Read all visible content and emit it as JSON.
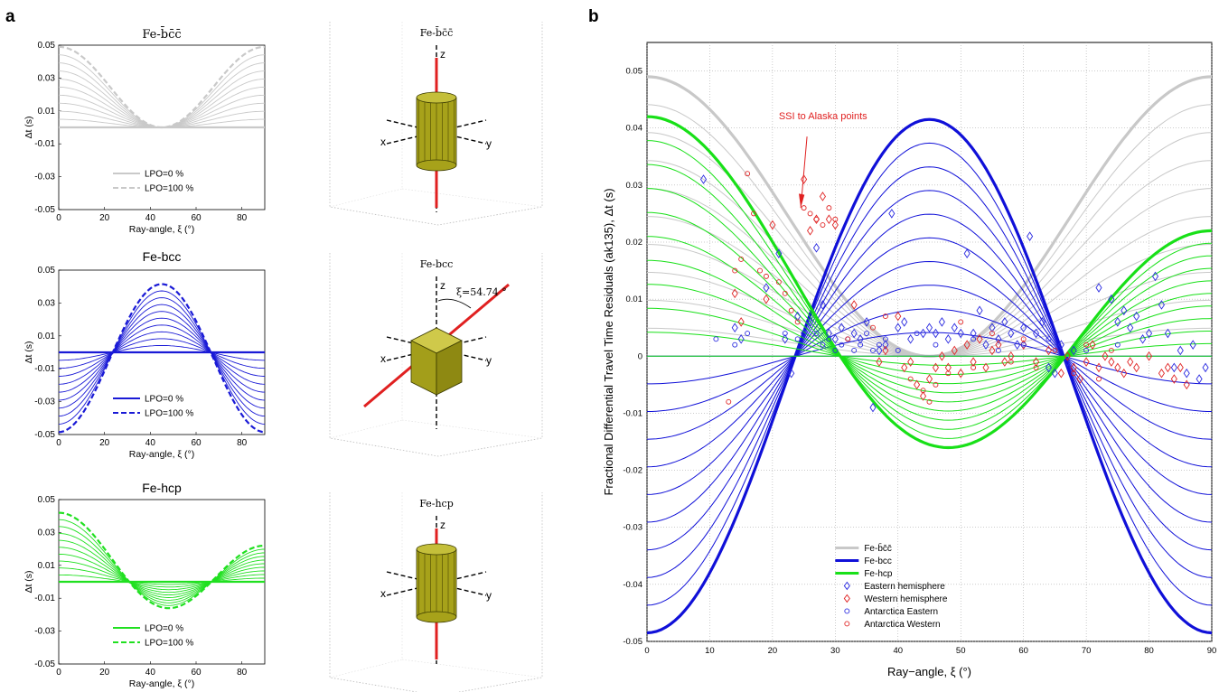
{
  "figure": {
    "panel_a_letter": "a",
    "panel_b_letter": "b"
  },
  "chart_data": [
    {
      "id": "a1",
      "type": "line",
      "title": "Fe-b̄c̄c̄",
      "xlabel": "Ray-angle, ξ (°)",
      "ylabel": "Δt (s)",
      "xlim": [
        0,
        90
      ],
      "ylim": [
        -0.05,
        0.05
      ],
      "xticks": [
        "0",
        "20",
        "40",
        "60",
        "80"
      ],
      "yticks": [
        "0.05",
        "0.03",
        "0.01",
        "-0.01",
        "-0.03",
        "-0.05"
      ],
      "color": "#c9c9c9",
      "model": {
        "shape": "cos2",
        "amplitude_min": 0.0,
        "amplitude_max": 0.049,
        "n_curves": 11,
        "min_at_deg": 45
      },
      "legend": [
        "LPO=0 %",
        "LPO=100 %"
      ]
    },
    {
      "id": "a2",
      "type": "line",
      "title": "Fe-bcc",
      "xlabel": "Ray-angle, ξ (°)",
      "ylabel": "Δt (s)",
      "xlim": [
        0,
        90
      ],
      "ylim": [
        -0.05,
        0.05
      ],
      "xticks": [
        "0",
        "20",
        "40",
        "60",
        "80"
      ],
      "yticks": [
        "0.05",
        "0.03",
        "0.01",
        "-0.01",
        "-0.03",
        "-0.05"
      ],
      "color": "#1a1ad6",
      "model": {
        "shape": "cubic",
        "value_at_0": -0.0485,
        "value_at_45": 0.0415,
        "n_curves": 11
      },
      "legend": [
        "LPO=0 %",
        "LPO=100 %"
      ]
    },
    {
      "id": "a3",
      "type": "line",
      "title": "Fe-hcp",
      "xlabel": "Ray-angle, ξ (°)",
      "ylabel": "Δt (s)",
      "xlim": [
        0,
        90
      ],
      "ylim": [
        -0.05,
        0.05
      ],
      "xticks": [
        "0",
        "20",
        "40",
        "60",
        "80"
      ],
      "yticks": [
        "0.05",
        "0.03",
        "0.01",
        "-0.01",
        "-0.03",
        "-0.05"
      ],
      "color": "#20e020",
      "model": {
        "shape": "hexagonal",
        "value_at_0": 0.042,
        "value_at_48": -0.0155,
        "value_at_90": 0.022,
        "n_curves": 11
      },
      "legend": [
        "LPO=0 %",
        "LPO=100 %"
      ]
    },
    {
      "id": "b",
      "type": "scatter",
      "title": "",
      "xlabel": "Ray−angle, ξ (°)",
      "ylabel": "Fractional Differential Travel Time Residuals (ak135), Δt (s)",
      "xlim": [
        0,
        90
      ],
      "ylim": [
        -0.05,
        0.055
      ],
      "xticks": [
        "0",
        "10",
        "20",
        "30",
        "40",
        "50",
        "60",
        "70",
        "80",
        "90"
      ],
      "yticks": [
        "0.05",
        "0.04",
        "0.03",
        "0.02",
        "0.01",
        "0",
        "-0.01",
        "-0.02",
        "-0.03",
        "-0.04",
        "-0.05"
      ],
      "grid": true,
      "legend_position": "bottom-center",
      "annotation": "SSI to Alaska points",
      "series": [
        {
          "name": "Fe-b̄c̄c̄",
          "kind": "line",
          "color": "#c8c8c8",
          "model": "cos2",
          "amplitude_max": 0.049
        },
        {
          "name": "Fe-bcc",
          "kind": "line",
          "color": "#1010d8",
          "model": "cubic",
          "value_at_0": -0.0485,
          "value_at_45": 0.0415
        },
        {
          "name": "Fe-hcp",
          "kind": "line",
          "color": "#18e018",
          "model": "hexagonal",
          "value_at_0": 0.042,
          "value_at_48": -0.0155,
          "value_at_90": 0.022
        },
        {
          "name": "Eastern hemisphere",
          "kind": "diamond",
          "color": "#2a2ae0",
          "points": [
            [
              9,
              0.031
            ],
            [
              14,
              0.005
            ],
            [
              15,
              0.003
            ],
            [
              19,
              0.012
            ],
            [
              21,
              0.018
            ],
            [
              22,
              0.003
            ],
            [
              23,
              -0.003
            ],
            [
              24,
              0.007
            ],
            [
              25,
              0.004
            ],
            [
              26,
              0.006
            ],
            [
              27,
              0.019
            ],
            [
              28,
              0.009
            ],
            [
              29,
              0.004
            ],
            [
              30,
              0.003
            ],
            [
              31,
              0.005
            ],
            [
              33,
              0.004
            ],
            [
              34,
              0.003
            ],
            [
              35,
              0.006
            ],
            [
              36,
              -0.009
            ],
            [
              37,
              0.001
            ],
            [
              38,
              0.002
            ],
            [
              39,
              0.025
            ],
            [
              40,
              0.005
            ],
            [
              41,
              0.006
            ],
            [
              42,
              0.003
            ],
            [
              44,
              0.004
            ],
            [
              45,
              0.005
            ],
            [
              46,
              0.004
            ],
            [
              47,
              0.006
            ],
            [
              48,
              0.003
            ],
            [
              49,
              0.005
            ],
            [
              50,
              0.004
            ],
            [
              51,
              0.018
            ],
            [
              52,
              0.004
            ],
            [
              53,
              0.008
            ],
            [
              54,
              0.002
            ],
            [
              55,
              0.005
            ],
            [
              56,
              0.003
            ],
            [
              57,
              0.006
            ],
            [
              58,
              0.004
            ],
            [
              59,
              0.002
            ],
            [
              60,
              0.005
            ],
            [
              61,
              0.021
            ],
            [
              62,
              0.004
            ],
            [
              63,
              0.006
            ],
            [
              64,
              -0.002
            ],
            [
              65,
              -0.003
            ],
            [
              66,
              0.002
            ],
            [
              67,
              -0.001
            ],
            [
              68,
              0.001
            ],
            [
              72,
              0.012
            ],
            [
              74,
              0.01
            ],
            [
              75,
              0.006
            ],
            [
              76,
              0.008
            ],
            [
              77,
              0.005
            ],
            [
              78,
              0.007
            ],
            [
              79,
              0.003
            ],
            [
              80,
              0.004
            ],
            [
              81,
              0.014
            ],
            [
              82,
              0.009
            ],
            [
              83,
              0.004
            ],
            [
              84,
              -0.002
            ],
            [
              85,
              0.001
            ],
            [
              86,
              -0.003
            ],
            [
              87,
              0.002
            ],
            [
              88,
              -0.004
            ],
            [
              89,
              -0.002
            ]
          ]
        },
        {
          "name": "Western hemisphere",
          "kind": "diamond",
          "color": "#e02424",
          "points": [
            [
              14,
              0.011
            ],
            [
              15,
              0.006
            ],
            [
              19,
              0.01
            ],
            [
              20,
              0.023
            ],
            [
              25,
              0.031
            ],
            [
              26,
              0.022
            ],
            [
              27,
              0.024
            ],
            [
              28,
              0.028
            ],
            [
              29,
              0.024
            ],
            [
              30,
              0.023
            ],
            [
              33,
              0.009
            ],
            [
              37,
              -0.001
            ],
            [
              38,
              0.001
            ],
            [
              40,
              0.007
            ],
            [
              41,
              -0.002
            ],
            [
              42,
              -0.001
            ],
            [
              43,
              -0.005
            ],
            [
              44,
              -0.007
            ],
            [
              45,
              -0.004
            ],
            [
              46,
              -0.002
            ],
            [
              47,
              0.0
            ],
            [
              48,
              -0.002
            ],
            [
              49,
              0.001
            ],
            [
              50,
              -0.003
            ],
            [
              51,
              0.002
            ],
            [
              52,
              -0.001
            ],
            [
              53,
              0.003
            ],
            [
              54,
              -0.002
            ],
            [
              55,
              0.001
            ],
            [
              56,
              0.002
            ],
            [
              57,
              -0.001
            ],
            [
              58,
              0.0
            ],
            [
              60,
              0.002
            ],
            [
              62,
              -0.001
            ],
            [
              64,
              0.001
            ],
            [
              66,
              -0.003
            ],
            [
              67,
              0.0
            ],
            [
              68,
              -0.002
            ],
            [
              69,
              -0.004
            ],
            [
              70,
              -0.001
            ],
            [
              71,
              0.002
            ],
            [
              72,
              -0.002
            ],
            [
              73,
              0.0
            ],
            [
              74,
              -0.001
            ],
            [
              75,
              -0.002
            ],
            [
              76,
              -0.003
            ],
            [
              77,
              -0.001
            ],
            [
              78,
              -0.002
            ],
            [
              80,
              0.0
            ],
            [
              82,
              -0.003
            ],
            [
              83,
              -0.002
            ],
            [
              84,
              -0.004
            ],
            [
              85,
              -0.002
            ],
            [
              86,
              -0.005
            ]
          ]
        },
        {
          "name": "Antarctica Eastern",
          "kind": "circle",
          "color": "#2a2ae0",
          "points": [
            [
              11,
              0.003
            ],
            [
              14,
              0.002
            ],
            [
              16,
              0.004
            ],
            [
              22,
              0.004
            ],
            [
              24,
              0.003
            ],
            [
              27,
              0.004
            ],
            [
              28,
              0.002
            ],
            [
              29,
              0.003
            ],
            [
              30,
              0.001
            ],
            [
              31,
              0.002
            ],
            [
              32,
              0.003
            ],
            [
              33,
              0.001
            ],
            [
              34,
              0.002
            ],
            [
              35,
              0.004
            ],
            [
              36,
              0.001
            ],
            [
              37,
              0.002
            ],
            [
              38,
              0.003
            ],
            [
              40,
              0.001
            ],
            [
              43,
              0.004
            ],
            [
              46,
              0.002
            ],
            [
              52,
              0.003
            ],
            [
              56,
              0.001
            ],
            [
              60,
              0.002
            ],
            [
              64,
              0.003
            ],
            [
              70,
              0.001
            ],
            [
              75,
              0.002
            ]
          ]
        },
        {
          "name": "Antarctica Western",
          "kind": "circle",
          "color": "#e02424",
          "points": [
            [
              13,
              -0.008
            ],
            [
              14,
              0.015
            ],
            [
              15,
              0.017
            ],
            [
              16,
              0.032
            ],
            [
              17,
              0.025
            ],
            [
              18,
              0.015
            ],
            [
              19,
              0.014
            ],
            [
              21,
              0.013
            ],
            [
              22,
              0.011
            ],
            [
              23,
              0.008
            ],
            [
              24,
              0.006
            ],
            [
              25,
              0.026
            ],
            [
              26,
              0.025
            ],
            [
              27,
              0.024
            ],
            [
              28,
              0.023
            ],
            [
              29,
              0.026
            ],
            [
              30,
              0.024
            ],
            [
              32,
              0.003
            ],
            [
              36,
              0.005
            ],
            [
              38,
              0.007
            ],
            [
              42,
              -0.004
            ],
            [
              44,
              -0.006
            ],
            [
              45,
              -0.008
            ],
            [
              46,
              -0.005
            ],
            [
              48,
              -0.003
            ],
            [
              50,
              0.006
            ],
            [
              52,
              -0.002
            ],
            [
              55,
              0.004
            ],
            [
              58,
              -0.001
            ],
            [
              60,
              0.003
            ],
            [
              62,
              -0.002
            ],
            [
              65,
              0.001
            ],
            [
              68,
              -0.003
            ],
            [
              70,
              0.002
            ],
            [
              72,
              -0.004
            ],
            [
              74,
              0.001
            ]
          ]
        }
      ]
    }
  ],
  "diagrams": [
    {
      "title": "Fe-b̄c̄c̄",
      "axis_z": "z",
      "axis_x": "x",
      "axis_y": "y",
      "shape": "cylinder"
    },
    {
      "title": "Fe-bcc",
      "axis_z": "z",
      "axis_x": "x",
      "axis_y": "y",
      "shape": "cube",
      "angle_label": "ξ=54.74 °"
    },
    {
      "title": "Fe-hcp",
      "axis_z": "z",
      "axis_x": "x",
      "axis_y": "y",
      "shape": "cylinder"
    }
  ]
}
